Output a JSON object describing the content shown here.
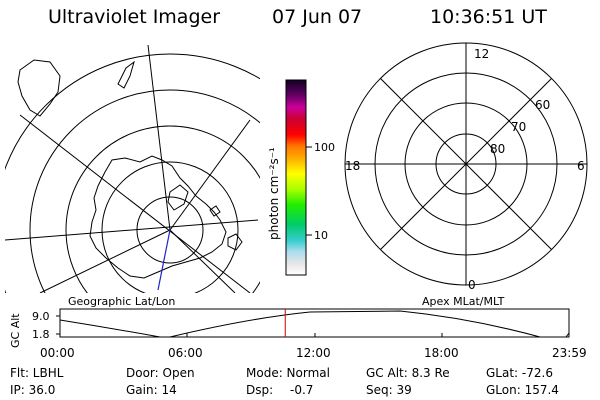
{
  "header": {
    "title": "Ultraviolet Imager",
    "date": "07 Jun 07",
    "time": "10:36:51 UT"
  },
  "panels": {
    "left_caption": "Geographic Lat/Lon",
    "right_caption": "Apex MLat/MLT"
  },
  "colorbar": {
    "unit_label": "photon cm⁻²s⁻¹",
    "ticks": [
      "100",
      "10"
    ]
  },
  "polar_plot": {
    "mlt_labels": [
      "12",
      "18",
      "6",
      "0"
    ],
    "lat_labels": [
      "60",
      "70",
      "80"
    ]
  },
  "timeline": {
    "ylabel": "GC Alt",
    "yticks": [
      "9.0",
      "1.8"
    ],
    "xticks": [
      "00:00",
      "06:00",
      "12:00",
      "18:00",
      "23:59"
    ],
    "current_time_fraction": 0.4425
  },
  "footer": {
    "filter": "Flt: LBHL",
    "door": "Door: Open",
    "mode": "Mode: Normal",
    "gc_alt": "GC Alt: 8.3 Re",
    "glat": "GLat: -72.6",
    "ip": "IP: 36.0",
    "gain": "Gain: 14",
    "dsp_label": "Dsp:",
    "dsp_value": "-0.7",
    "seq": "Seq: 39",
    "glon": "GLon: 157.4"
  },
  "colors": {
    "marker": "#cc0000",
    "meridian": "#2222cc",
    "ink": "#000000"
  }
}
